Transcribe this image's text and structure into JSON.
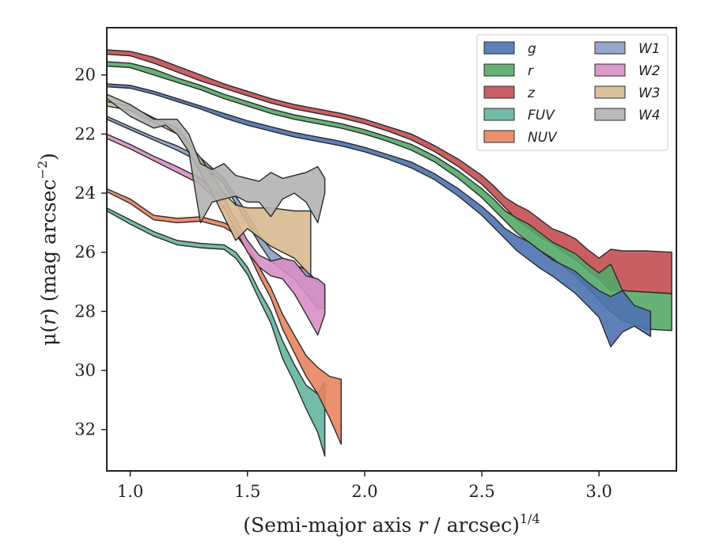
{
  "chart_data": {
    "type": "area",
    "xlabel": "(Semi-major axis r / arcsec)",
    "xlabel_italic": "r",
    "xlabel_prefix": "(Semi-major axis ",
    "xlabel_suffix": " / arcsec)",
    "xlabel_exponent": "1/4",
    "ylabel_prefix": "μ(",
    "ylabel_italic": "r",
    "ylabel_suffix": ") (mag arcsec",
    "ylabel_exponent": "−2",
    "ylabel_close": ")",
    "xlim": [
      0.9,
      3.33
    ],
    "ylim": [
      33.4,
      18.4
    ],
    "y_inverted": true,
    "xticks": [
      1.0,
      1.5,
      2.0,
      2.5,
      3.0
    ],
    "xtick_labels": [
      "1.0",
      "1.5",
      "2.0",
      "2.5",
      "3.0"
    ],
    "yticks": [
      20,
      22,
      24,
      26,
      28,
      30,
      32
    ],
    "ytick_labels": [
      "20",
      "22",
      "24",
      "26",
      "28",
      "30",
      "32"
    ],
    "grid": false,
    "legend_position": "top-right",
    "legend_columns": 2,
    "series": [
      {
        "name": "z",
        "color": "#c44e52",
        "points": [
          [
            0.9,
            19.15,
            19.3
          ],
          [
            1.0,
            19.2,
            19.35
          ],
          [
            1.1,
            19.4,
            19.6
          ],
          [
            1.2,
            19.7,
            19.9
          ],
          [
            1.3,
            20.0,
            20.2
          ],
          [
            1.4,
            20.3,
            20.45
          ],
          [
            1.5,
            20.55,
            20.7
          ],
          [
            1.6,
            20.8,
            20.95
          ],
          [
            1.7,
            21.0,
            21.15
          ],
          [
            1.8,
            21.15,
            21.3
          ],
          [
            1.9,
            21.3,
            21.45
          ],
          [
            2.0,
            21.5,
            21.65
          ],
          [
            2.1,
            21.75,
            21.9
          ],
          [
            2.2,
            22.0,
            22.2
          ],
          [
            2.3,
            22.4,
            22.6
          ],
          [
            2.4,
            22.85,
            23.1
          ],
          [
            2.5,
            23.4,
            23.7
          ],
          [
            2.55,
            23.75,
            24.1
          ],
          [
            2.6,
            24.15,
            24.5
          ],
          [
            2.65,
            24.4,
            24.9
          ],
          [
            2.7,
            24.6,
            25.2
          ],
          [
            2.75,
            24.9,
            25.5
          ],
          [
            2.8,
            25.2,
            25.7
          ],
          [
            2.85,
            25.35,
            26.0
          ],
          [
            2.9,
            25.55,
            26.25
          ],
          [
            2.95,
            25.9,
            26.6
          ],
          [
            3.0,
            26.2,
            26.9
          ],
          [
            3.05,
            25.9,
            27.3
          ],
          [
            3.1,
            25.95,
            27.3
          ],
          [
            3.2,
            25.95,
            27.35
          ],
          [
            3.31,
            26.0,
            27.4
          ]
        ]
      },
      {
        "name": "r",
        "color": "#55a868",
        "points": [
          [
            0.9,
            19.55,
            19.7
          ],
          [
            1.0,
            19.6,
            19.75
          ],
          [
            1.1,
            19.8,
            20.0
          ],
          [
            1.2,
            20.1,
            20.25
          ],
          [
            1.3,
            20.35,
            20.5
          ],
          [
            1.4,
            20.65,
            20.8
          ],
          [
            1.5,
            20.9,
            21.05
          ],
          [
            1.6,
            21.15,
            21.3
          ],
          [
            1.7,
            21.35,
            21.5
          ],
          [
            1.8,
            21.5,
            21.65
          ],
          [
            1.9,
            21.65,
            21.8
          ],
          [
            2.0,
            21.85,
            22.0
          ],
          [
            2.1,
            22.1,
            22.25
          ],
          [
            2.2,
            22.35,
            22.55
          ],
          [
            2.3,
            22.75,
            22.95
          ],
          [
            2.4,
            23.25,
            23.5
          ],
          [
            2.5,
            23.85,
            24.15
          ],
          [
            2.55,
            24.2,
            24.55
          ],
          [
            2.6,
            24.6,
            24.95
          ],
          [
            2.65,
            24.85,
            25.35
          ],
          [
            2.7,
            25.05,
            25.65
          ],
          [
            2.75,
            25.35,
            25.95
          ],
          [
            2.8,
            25.65,
            26.2
          ],
          [
            2.85,
            25.85,
            26.5
          ],
          [
            2.9,
            26.05,
            26.8
          ],
          [
            2.95,
            26.4,
            27.2
          ],
          [
            3.0,
            26.7,
            27.6
          ],
          [
            3.05,
            26.4,
            28.0
          ],
          [
            3.1,
            27.3,
            28.3
          ],
          [
            3.2,
            27.35,
            28.6
          ],
          [
            3.31,
            27.4,
            28.65
          ]
        ]
      },
      {
        "name": "g",
        "color": "#4c72b0",
        "points": [
          [
            0.9,
            20.3,
            20.4
          ],
          [
            1.0,
            20.35,
            20.45
          ],
          [
            1.1,
            20.55,
            20.65
          ],
          [
            1.2,
            20.8,
            20.9
          ],
          [
            1.3,
            21.05,
            21.15
          ],
          [
            1.4,
            21.3,
            21.45
          ],
          [
            1.5,
            21.55,
            21.7
          ],
          [
            1.6,
            21.75,
            21.9
          ],
          [
            1.7,
            21.95,
            22.1
          ],
          [
            1.8,
            22.1,
            22.25
          ],
          [
            1.9,
            22.25,
            22.4
          ],
          [
            2.0,
            22.45,
            22.6
          ],
          [
            2.1,
            22.7,
            22.85
          ],
          [
            2.2,
            22.95,
            23.15
          ],
          [
            2.3,
            23.35,
            23.55
          ],
          [
            2.4,
            23.85,
            24.1
          ],
          [
            2.5,
            24.45,
            24.75
          ],
          [
            2.55,
            24.8,
            25.15
          ],
          [
            2.6,
            25.2,
            25.55
          ],
          [
            2.65,
            25.45,
            25.95
          ],
          [
            2.7,
            25.65,
            26.25
          ],
          [
            2.75,
            25.95,
            26.55
          ],
          [
            2.8,
            26.25,
            26.8
          ],
          [
            2.85,
            26.45,
            27.1
          ],
          [
            2.9,
            26.65,
            27.4
          ],
          [
            2.95,
            27.0,
            27.8
          ],
          [
            3.0,
            27.3,
            28.2
          ],
          [
            3.05,
            27.5,
            29.2
          ],
          [
            3.1,
            27.3,
            28.7
          ],
          [
            3.15,
            27.8,
            28.5
          ],
          [
            3.22,
            28.0,
            28.85
          ]
        ]
      },
      {
        "name": "FUV",
        "color": "#64b5a0",
        "points": [
          [
            0.9,
            24.5,
            24.6
          ],
          [
            1.0,
            24.9,
            25.05
          ],
          [
            1.1,
            25.3,
            25.45
          ],
          [
            1.2,
            25.6,
            25.75
          ],
          [
            1.3,
            25.7,
            25.85
          ],
          [
            1.4,
            25.75,
            25.9
          ],
          [
            1.45,
            26.0,
            26.2
          ],
          [
            1.5,
            26.5,
            26.75
          ],
          [
            1.55,
            27.3,
            27.6
          ],
          [
            1.6,
            28.0,
            28.4
          ],
          [
            1.65,
            29.0,
            29.6
          ],
          [
            1.7,
            29.8,
            30.4
          ],
          [
            1.75,
            30.5,
            31.3
          ],
          [
            1.8,
            30.8,
            32.1
          ],
          [
            1.83,
            30.4,
            32.9
          ]
        ]
      },
      {
        "name": "NUV",
        "color": "#e8845e",
        "points": [
          [
            0.9,
            23.85,
            23.95
          ],
          [
            1.0,
            24.2,
            24.35
          ],
          [
            1.1,
            24.75,
            24.9
          ],
          [
            1.2,
            24.85,
            25.0
          ],
          [
            1.3,
            24.8,
            24.95
          ],
          [
            1.4,
            25.0,
            25.15
          ],
          [
            1.45,
            25.2,
            25.4
          ],
          [
            1.5,
            25.7,
            25.95
          ],
          [
            1.55,
            26.5,
            26.8
          ],
          [
            1.6,
            27.2,
            27.55
          ],
          [
            1.65,
            28.1,
            28.6
          ],
          [
            1.7,
            28.8,
            29.4
          ],
          [
            1.75,
            29.5,
            30.2
          ],
          [
            1.8,
            29.9,
            30.8
          ],
          [
            1.85,
            30.2,
            31.6
          ],
          [
            1.9,
            30.3,
            32.5
          ]
        ]
      },
      {
        "name": "W1",
        "color": "#8c9dc4",
        "points": [
          [
            0.9,
            21.4,
            21.5
          ],
          [
            1.0,
            21.75,
            21.85
          ],
          [
            1.1,
            22.1,
            22.2
          ],
          [
            1.2,
            22.4,
            22.55
          ],
          [
            1.3,
            22.8,
            22.95
          ],
          [
            1.4,
            23.5,
            23.7
          ],
          [
            1.5,
            24.7,
            25.0
          ],
          [
            1.55,
            25.4,
            25.7
          ],
          [
            1.6,
            25.9,
            26.3
          ],
          [
            1.65,
            26.2,
            26.6
          ],
          [
            1.7,
            26.4,
            26.9
          ],
          [
            1.75,
            26.6,
            27.4
          ],
          [
            1.8,
            27.0,
            27.9
          ],
          [
            1.83,
            27.2,
            27.9
          ]
        ]
      },
      {
        "name": "W2",
        "color": "#d88fc6",
        "points": [
          [
            0.9,
            22.0,
            22.15
          ],
          [
            1.0,
            22.35,
            22.5
          ],
          [
            1.1,
            22.75,
            22.9
          ],
          [
            1.2,
            23.1,
            23.3
          ],
          [
            1.3,
            23.5,
            23.7
          ],
          [
            1.4,
            24.2,
            24.5
          ],
          [
            1.5,
            25.6,
            26.0
          ],
          [
            1.55,
            26.1,
            26.5
          ],
          [
            1.6,
            26.3,
            26.8
          ],
          [
            1.65,
            26.2,
            26.9
          ],
          [
            1.7,
            26.3,
            27.4
          ],
          [
            1.75,
            26.8,
            28.1
          ],
          [
            1.8,
            26.9,
            28.8
          ],
          [
            1.83,
            27.1,
            28.1
          ]
        ]
      },
      {
        "name": "W3",
        "color": "#d8b990",
        "points": [
          [
            0.9,
            20.9,
            21.05
          ],
          [
            1.0,
            21.05,
            21.2
          ],
          [
            1.1,
            21.45,
            21.6
          ],
          [
            1.2,
            21.8,
            22.0
          ],
          [
            1.25,
            22.3,
            22.6
          ],
          [
            1.3,
            22.8,
            23.3
          ],
          [
            1.35,
            23.4,
            24.0
          ],
          [
            1.4,
            24.0,
            24.8
          ],
          [
            1.45,
            24.4,
            25.6
          ],
          [
            1.5,
            24.5,
            25.2
          ],
          [
            1.6,
            24.5,
            25.8
          ],
          [
            1.7,
            24.6,
            26.2
          ],
          [
            1.77,
            24.6,
            26.8
          ]
        ]
      },
      {
        "name": "W4",
        "color": "#b3b3b3",
        "points": [
          [
            0.9,
            20.65,
            20.8
          ],
          [
            1.0,
            21.0,
            21.4
          ],
          [
            1.1,
            21.5,
            21.8
          ],
          [
            1.15,
            21.5,
            21.7
          ],
          [
            1.2,
            21.5,
            22.0
          ],
          [
            1.25,
            22.0,
            22.6
          ],
          [
            1.3,
            23.0,
            25.0
          ],
          [
            1.35,
            23.2,
            24.3
          ],
          [
            1.4,
            23.0,
            24.2
          ],
          [
            1.45,
            23.4,
            24.1
          ],
          [
            1.5,
            23.5,
            24.3
          ],
          [
            1.55,
            23.6,
            24.3
          ],
          [
            1.6,
            23.3,
            24.8
          ],
          [
            1.65,
            23.5,
            24.2
          ],
          [
            1.7,
            23.4,
            24.0
          ],
          [
            1.75,
            23.3,
            24.3
          ],
          [
            1.8,
            23.1,
            25.0
          ],
          [
            1.83,
            23.5,
            24.0
          ]
        ]
      }
    ],
    "legend_col1": [
      "g",
      "r",
      "z",
      "FUV",
      "NUV"
    ],
    "legend_col2": [
      "W1",
      "W2",
      "W3",
      "W4"
    ]
  }
}
